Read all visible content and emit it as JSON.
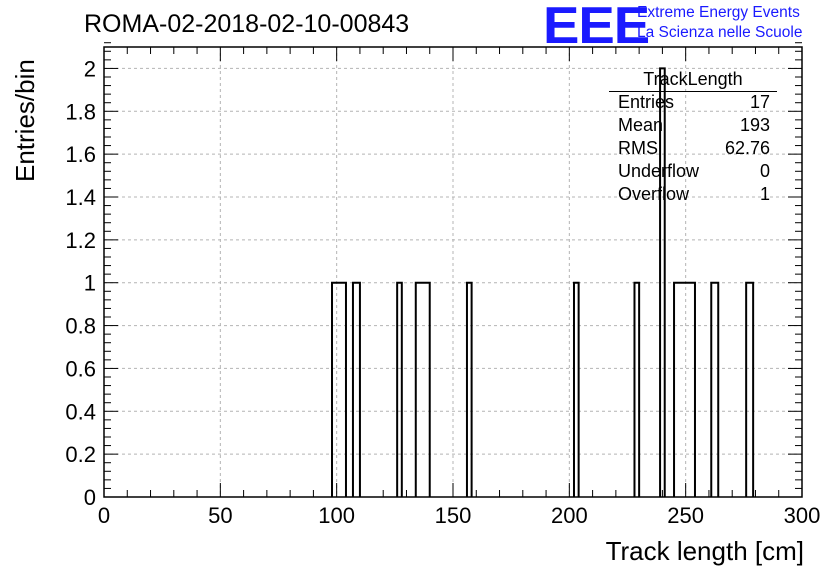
{
  "header": {
    "run_title": "ROMA-02-2018-02-10-00843",
    "logo_text": "EEE",
    "logo_line1": "Extreme Energy Events",
    "logo_line2": "La Scienza nelle Scuole",
    "logo_color": "#1a1aff"
  },
  "stats": {
    "title": "TrackLength",
    "rows": [
      {
        "key": "Entries",
        "value": "17"
      },
      {
        "key": "Mean",
        "value": "193"
      },
      {
        "key": "RMS",
        "value": "62.76"
      },
      {
        "key": "Underflow",
        "value": "0"
      },
      {
        "key": "Overflow",
        "value": "1"
      }
    ]
  },
  "chart_data": {
    "type": "bar",
    "title": "ROMA-02-2018-02-10-00843",
    "xlabel": "Track length [cm]",
    "ylabel": "Entries/bin",
    "xlim": [
      0,
      300
    ],
    "ylim": [
      0,
      2.1
    ],
    "grid": true,
    "x_ticks": [
      "0",
      "50",
      "100",
      "150",
      "200",
      "250",
      "300"
    ],
    "y_ticks": [
      "0",
      "0.2",
      "0.4",
      "0.6",
      "0.8",
      "1",
      "1.2",
      "1.4",
      "1.6",
      "1.8",
      "2"
    ],
    "bin_width": 2,
    "bins": [
      {
        "x_low": 98,
        "x_high": 104,
        "count": 1
      },
      {
        "x_low": 107,
        "x_high": 110,
        "count": 1
      },
      {
        "x_low": 126,
        "x_high": 128,
        "count": 1
      },
      {
        "x_low": 134,
        "x_high": 140,
        "count": 1
      },
      {
        "x_low": 156,
        "x_high": 158,
        "count": 1
      },
      {
        "x_low": 202,
        "x_high": 204,
        "count": 1
      },
      {
        "x_low": 228,
        "x_high": 230,
        "count": 1
      },
      {
        "x_low": 239,
        "x_high": 241,
        "count": 2
      },
      {
        "x_low": 245,
        "x_high": 254,
        "count": 1
      },
      {
        "x_low": 261,
        "x_high": 264,
        "count": 1
      },
      {
        "x_low": 276,
        "x_high": 279,
        "count": 1
      }
    ]
  }
}
